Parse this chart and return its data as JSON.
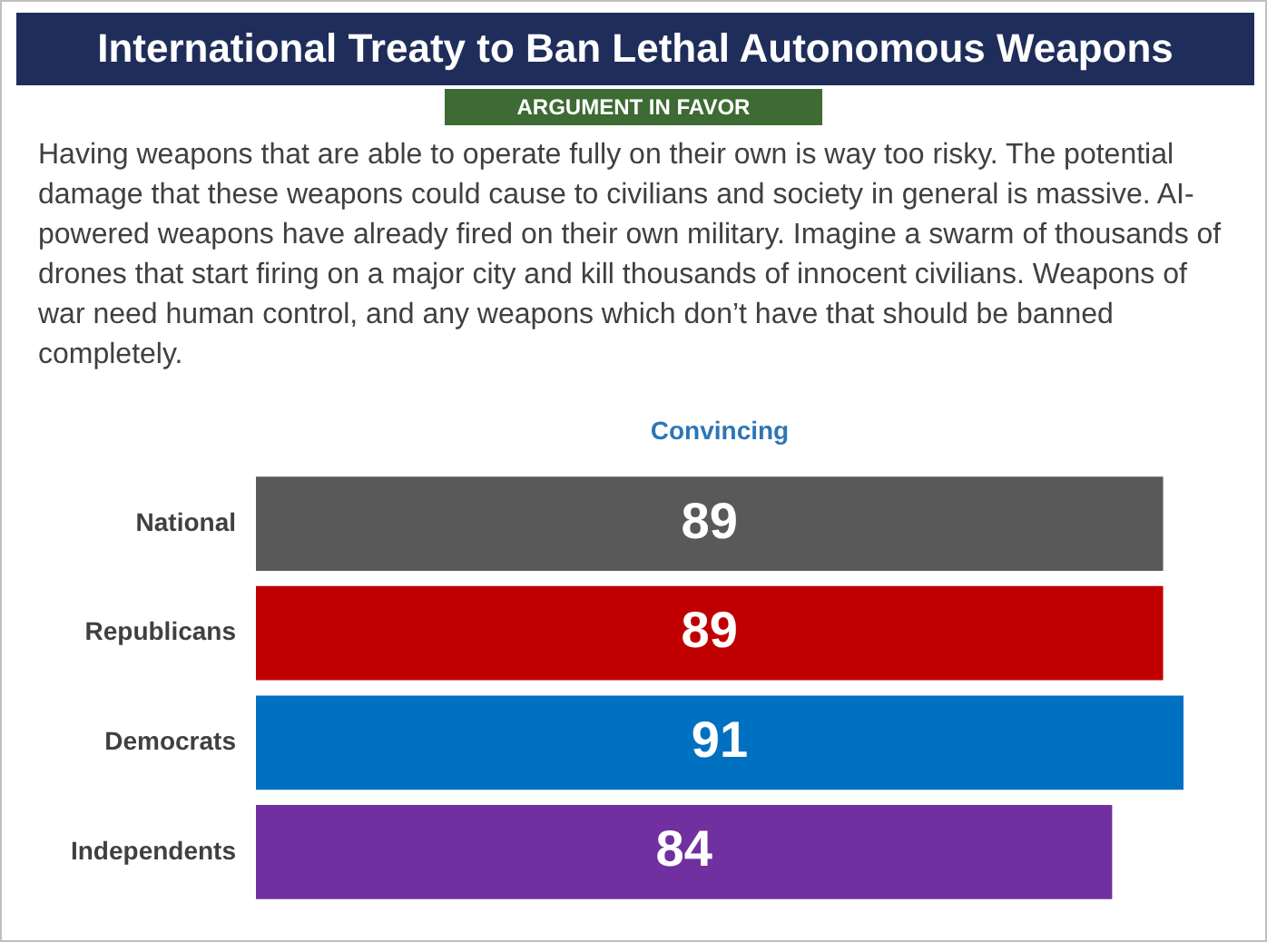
{
  "chart_data": {
    "type": "bar",
    "orientation": "horizontal",
    "title": "International Treaty to Ban Lethal Autonomous Weapons",
    "subtitle": "ARGUMENT IN FAVOR",
    "annotations": [
      "Having weapons that are able to operate fully on their own is way too risky.  The potential damage that these weapons could cause to civilians and society in general is massive. AI-powered weapons have already fired on their own military.  Imagine a swarm of thousands of drones that start firing on a major city and kill  thousands of innocent civilians.  Weapons of war need human control, and any weapons which don’t have that should be banned completely."
    ],
    "xlabel": "Convincing",
    "categories": [
      "National",
      "Republicans",
      "Democrats",
      "Independents"
    ],
    "values": [
      89,
      89,
      91,
      84
    ],
    "colors": [
      "#595959",
      "#c00000",
      "#0070c0",
      "#7030a0"
    ],
    "data_labels": true,
    "legend": false
  }
}
